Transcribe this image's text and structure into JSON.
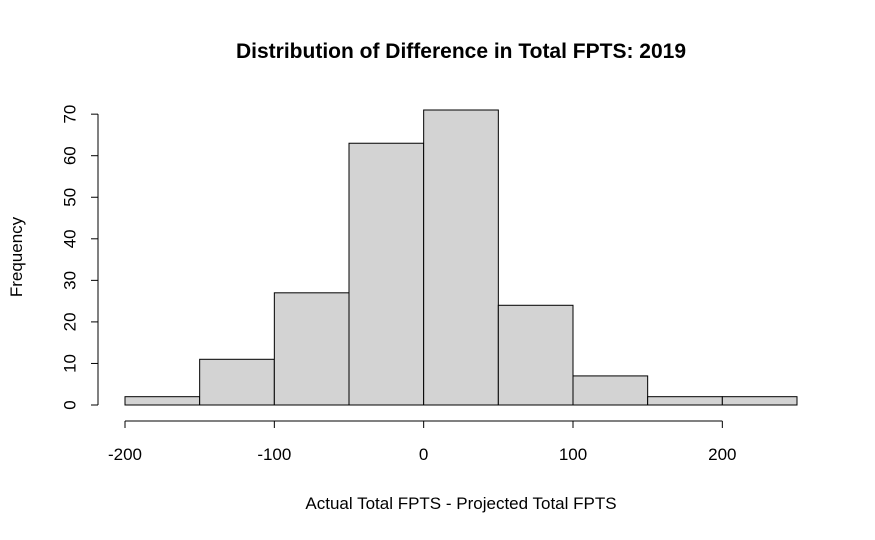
{
  "chart_data": {
    "type": "bar",
    "title": "Distribution of Difference in Total FPTS: 2019",
    "xlabel": "Actual Total FPTS - Projected Total FPTS",
    "ylabel": "Frequency",
    "bins": [
      {
        "from": -200,
        "to": -150,
        "count": 2
      },
      {
        "from": -150,
        "to": -100,
        "count": 11
      },
      {
        "from": -100,
        "to": -50,
        "count": 27
      },
      {
        "from": -50,
        "to": 0,
        "count": 63
      },
      {
        "from": 0,
        "to": 50,
        "count": 71
      },
      {
        "from": 50,
        "to": 100,
        "count": 24
      },
      {
        "from": 100,
        "to": 150,
        "count": 7
      },
      {
        "from": 150,
        "to": 200,
        "count": 2
      },
      {
        "from": 200,
        "to": 250,
        "count": 2
      }
    ],
    "xlim": [
      -200,
      250
    ],
    "ylim": [
      0,
      71
    ],
    "x_ticks": [
      -200,
      -100,
      0,
      100,
      200
    ],
    "y_ticks": [
      0,
      10,
      20,
      30,
      40,
      50,
      60,
      70
    ],
    "bar_color": "#d3d3d3",
    "grid": false,
    "legend": "none"
  }
}
